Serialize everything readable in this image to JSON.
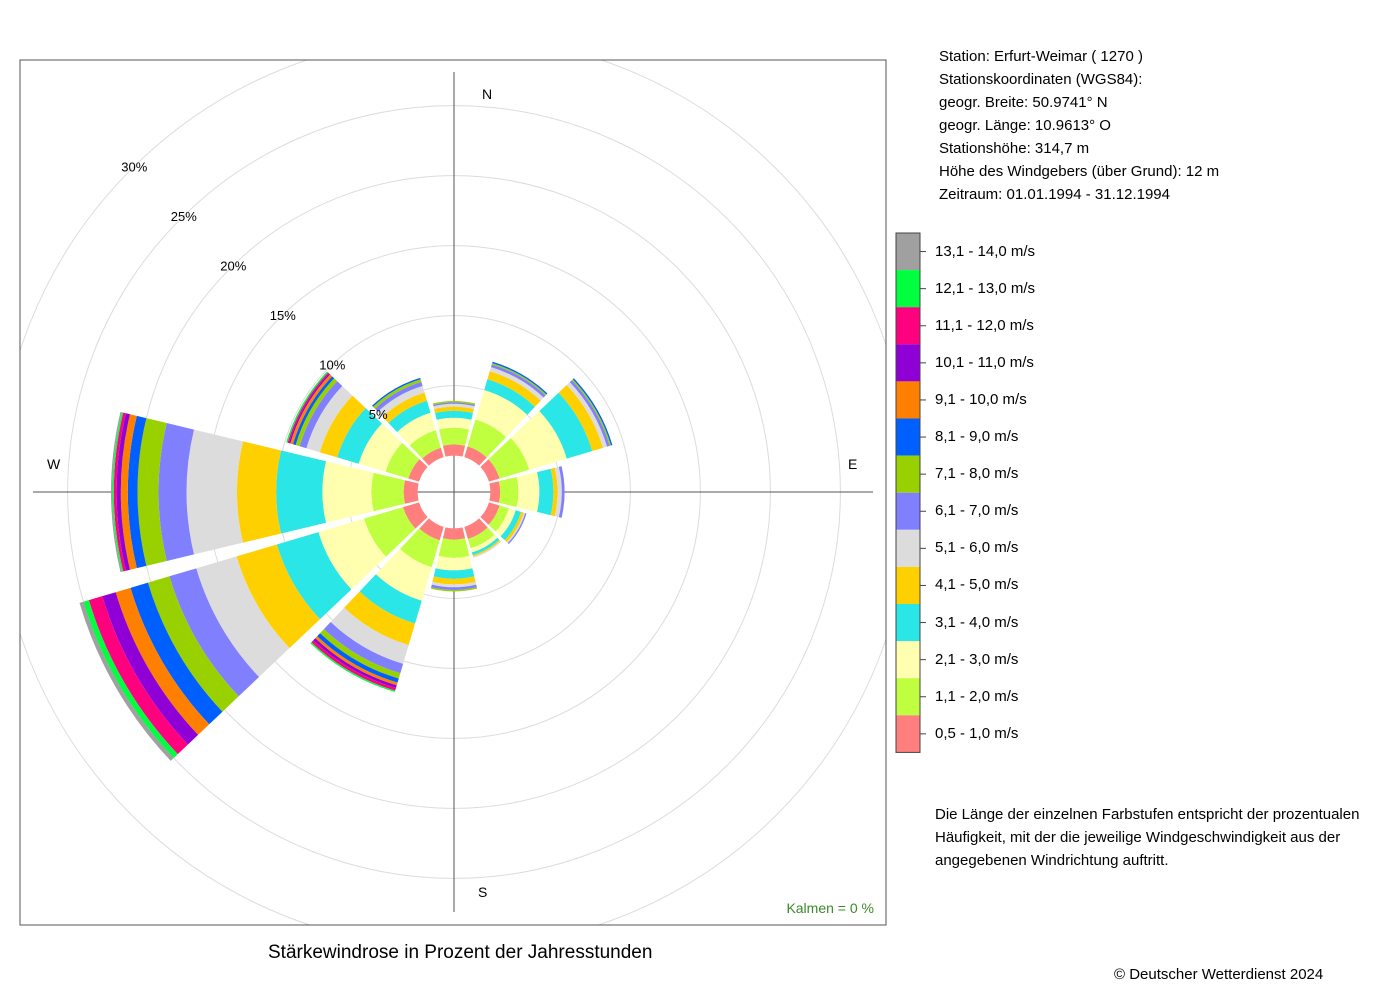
{
  "station": {
    "line1": "Station:  Erfurt-Weimar  ( 1270 )",
    "line2": "Stationskoordinaten (WGS84):",
    "line3": "geogr. Breite: 50.9741° N",
    "line4": "geogr. Länge: 10.9613° O",
    "line5": "Stationshöhe: 314,7 m",
    "line6": "Höhe des Windgebers (über Grund): 12 m",
    "line7": "Zeitraum: 01.01.1994 - 31.12.1994"
  },
  "note": "Die Länge der einzelnen Farbstufen entspricht der prozentualen Häufigkeit, mit der die jeweilige Windgeschwindigkeit aus der angegebenen Windrichtung auftritt.",
  "caption": "Stärkewindrose in Prozent der Jahresstunden",
  "copyright": "© Deutscher Wetterdienst  2024",
  "calm": "Kalmen  =  0 %",
  "chart_data": {
    "type": "polar-stacked-bar",
    "title": "Stärkewindrose in Prozent der Jahresstunden",
    "compass": [
      "N",
      "E",
      "S",
      "W"
    ],
    "radial_ticks": [
      "5%",
      "10%",
      "15%",
      "20%",
      "25%",
      "30%"
    ],
    "radial_tick_values": [
      5,
      10,
      15,
      20,
      25,
      30
    ],
    "inner_hole_percent": 2.6,
    "grid": true,
    "legend_position": "right",
    "speed_classes": [
      {
        "label": "0,5 - 1,0 m/s",
        "color": "#FF7F7F"
      },
      {
        "label": "1,1 - 2,0 m/s",
        "color": "#BFFF3F"
      },
      {
        "label": "2,1 - 3,0 m/s",
        "color": "#FFFFAF"
      },
      {
        "label": "3,1 - 4,0 m/s",
        "color": "#2AE6E6"
      },
      {
        "label": "4,1 - 5,0 m/s",
        "color": "#FFD000"
      },
      {
        "label": "5,1 - 6,0 m/s",
        "color": "#DCDCDC"
      },
      {
        "label": "6,1 - 7,0 m/s",
        "color": "#8080FF"
      },
      {
        "label": "7,1 - 8,0 m/s",
        "color": "#99D100"
      },
      {
        "label": "8,1 - 9,0 m/s",
        "color": "#0060FF"
      },
      {
        "label": "9,1 - 10,0 m/s",
        "color": "#FF8000"
      },
      {
        "label": "10,1 - 11,0 m/s",
        "color": "#8F00D6"
      },
      {
        "label": "11,1 - 12,0 m/s",
        "color": "#FF007F"
      },
      {
        "label": "12,1 - 13,0 m/s",
        "color": "#00FF3F"
      },
      {
        "label": "13,1 - 14,0 m/s",
        "color": "#A0A0A0"
      }
    ],
    "directions_deg": [
      0,
      30,
      60,
      90,
      120,
      150,
      180,
      210,
      240,
      270,
      300,
      330
    ],
    "series": [
      {
        "direction": "N",
        "values": [
          0.8,
          1.2,
          0.7,
          0.5,
          0.3,
          0.2,
          0.1,
          0.1,
          0,
          0,
          0,
          0,
          0,
          0
        ]
      },
      {
        "direction": "30",
        "values": [
          0.8,
          2.0,
          2.2,
          0.8,
          0.6,
          0.3,
          0.2,
          0.1,
          0.1,
          0,
          0,
          0,
          0,
          0
        ]
      },
      {
        "direction": "60",
        "values": [
          0.8,
          2.2,
          2.8,
          1.9,
          0.8,
          0.3,
          0.2,
          0.1,
          0.1,
          0,
          0,
          0,
          0,
          0
        ]
      },
      {
        "direction": "E",
        "values": [
          0.7,
          1.3,
          1.5,
          1.0,
          0.3,
          0.3,
          0.2,
          0,
          0,
          0,
          0,
          0,
          0,
          0
        ]
      },
      {
        "direction": "120",
        "values": [
          0.8,
          0.7,
          0.5,
          0.4,
          0.2,
          0.1,
          0.1,
          0,
          0,
          0,
          0,
          0,
          0,
          0
        ]
      },
      {
        "direction": "150",
        "values": [
          0.9,
          0.7,
          0.3,
          0.2,
          0.1,
          0.1,
          0,
          0,
          0,
          0,
          0,
          0,
          0,
          0
        ]
      },
      {
        "direction": "S",
        "values": [
          0.8,
          1.3,
          0.9,
          0.6,
          0.4,
          0.2,
          0.2,
          0.1,
          0,
          0,
          0,
          0,
          0,
          0
        ]
      },
      {
        "direction": "210",
        "values": [
          1.0,
          2.0,
          2.5,
          1.7,
          1.6,
          1.4,
          0.7,
          0.4,
          0.3,
          0.2,
          0.2,
          0.2,
          0.1,
          0
        ]
      },
      {
        "direction": "240",
        "values": [
          1.2,
          2.9,
          3.4,
          3.1,
          3.0,
          3.0,
          2.0,
          1.6,
          1.3,
          1.1,
          1.0,
          1.0,
          0.4,
          0.3
        ]
      },
      {
        "direction": "W",
        "values": [
          1.0,
          2.3,
          3.5,
          3.3,
          2.8,
          3.6,
          2.0,
          1.5,
          0.7,
          0.5,
          0.3,
          0.2,
          0.1,
          0.1
        ]
      },
      {
        "direction": "300",
        "values": [
          0.8,
          1.7,
          2.0,
          1.6,
          1.3,
          1.0,
          0.5,
          0.3,
          0.2,
          0.2,
          0.1,
          0.1,
          0.1,
          0
        ]
      },
      {
        "direction": "330",
        "values": [
          0.7,
          1.3,
          1.3,
          0.9,
          0.6,
          0.5,
          0.3,
          0.2,
          0.1,
          0,
          0,
          0,
          0,
          0
        ]
      }
    ]
  }
}
